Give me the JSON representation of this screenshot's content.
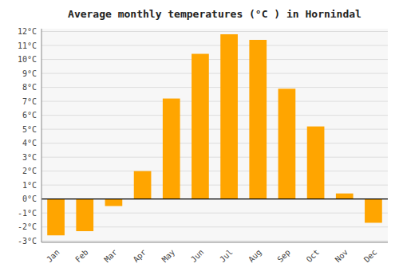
{
  "chart_data": {
    "type": "bar",
    "title": "Average monthly temperatures (°C ) in Hornindal",
    "categories": [
      "Jan",
      "Feb",
      "Mar",
      "Apr",
      "May",
      "Jun",
      "Jul",
      "Aug",
      "Sep",
      "Oct",
      "Nov",
      "Dec"
    ],
    "values": [
      -2.6,
      -2.3,
      -0.5,
      2.0,
      7.2,
      10.4,
      11.8,
      11.4,
      7.9,
      5.2,
      0.4,
      -1.7
    ],
    "color": "#FFA500",
    "ylim": [
      -3.1,
      12.2
    ],
    "yticks": [
      {
        "value": -3,
        "label": "-3°C"
      },
      {
        "value": -2,
        "label": "-2°C"
      },
      {
        "value": -1,
        "label": "-1°C"
      },
      {
        "value": 0,
        "label": "0°C"
      },
      {
        "value": 1,
        "label": "1°C"
      },
      {
        "value": 2,
        "label": "2°C"
      },
      {
        "value": 3,
        "label": "3°C"
      },
      {
        "value": 4,
        "label": "4°C"
      },
      {
        "value": 5,
        "label": "5°C"
      },
      {
        "value": 6,
        "label": "6°C"
      },
      {
        "value": 7,
        "label": "7°C"
      },
      {
        "value": 8,
        "label": "8°C"
      },
      {
        "value": 9,
        "label": "9°C"
      },
      {
        "value": 10,
        "label": "10°C"
      },
      {
        "value": 11,
        "label": "11°C"
      },
      {
        "value": 12,
        "label": "12°C"
      }
    ],
    "grid": true
  }
}
